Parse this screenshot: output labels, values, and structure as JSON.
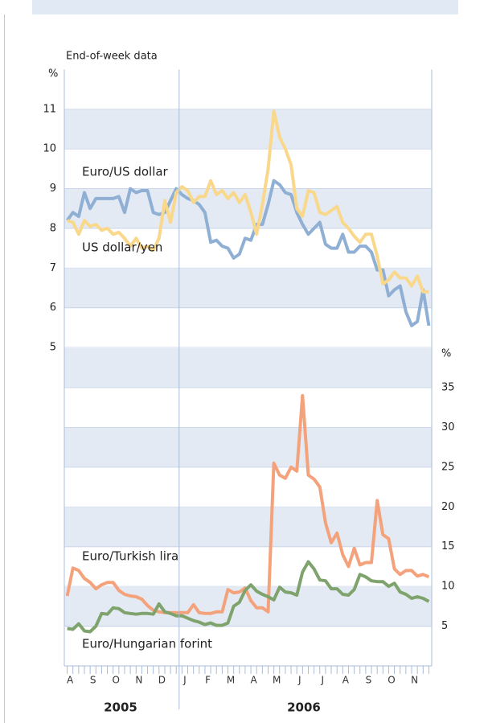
{
  "subtitle": "End-of-week data",
  "year_labels": [
    "2005",
    "2006"
  ],
  "chart_data": [
    {
      "type": "line",
      "y_unit": "%",
      "ylim": [
        5,
        12
      ],
      "yticks": [
        5,
        6,
        7,
        8,
        9,
        10,
        11
      ],
      "series": [
        {
          "name": "Euro/US dollar",
          "color": "#8fb0d4",
          "values": [
            8.2,
            8.4,
            8.3,
            8.9,
            8.5,
            8.75,
            8.75,
            8.75,
            8.75,
            8.8,
            8.4,
            9.0,
            8.9,
            8.95,
            8.95,
            8.4,
            8.35,
            8.4,
            8.7,
            9.0,
            8.85,
            8.75,
            8.7,
            8.6,
            8.4,
            7.65,
            7.7,
            7.55,
            7.5,
            7.25,
            7.35,
            7.75,
            7.7,
            8.1,
            8.1,
            8.6,
            9.2,
            9.1,
            8.9,
            8.85,
            8.4,
            8.1,
            7.85,
            8.0,
            8.15,
            7.6,
            7.5,
            7.5,
            7.85,
            7.4,
            7.4,
            7.55,
            7.55,
            7.4,
            6.95,
            6.95,
            6.3,
            6.45,
            6.55,
            5.9,
            5.55,
            5.65,
            6.45,
            5.55
          ]
        },
        {
          "name": "US dollar/yen",
          "color": "#f9d88c",
          "values": [
            8.2,
            8.15,
            7.85,
            8.2,
            8.05,
            8.1,
            7.95,
            8.0,
            7.85,
            7.9,
            7.75,
            7.55,
            7.75,
            7.5,
            7.55,
            7.45,
            7.75,
            8.7,
            8.15,
            8.9,
            9.05,
            8.95,
            8.65,
            8.8,
            8.8,
            9.2,
            8.85,
            8.95,
            8.75,
            8.9,
            8.65,
            8.85,
            8.4,
            7.85,
            8.6,
            9.5,
            10.95,
            10.3,
            10.0,
            9.6,
            8.5,
            8.3,
            8.95,
            8.9,
            8.4,
            8.35,
            8.45,
            8.55,
            8.15,
            8.0,
            7.8,
            7.65,
            7.85,
            7.85,
            7.3,
            6.6,
            6.7,
            6.9,
            6.75,
            6.75,
            6.55,
            6.8,
            6.4,
            6.4
          ]
        }
      ]
    },
    {
      "type": "line",
      "y_unit": "%",
      "ylim": [
        0,
        35
      ],
      "yticks": [
        5,
        10,
        15,
        20,
        25,
        30,
        35
      ],
      "categories": [
        null,
        "A",
        null,
        null,
        null,
        "S",
        null,
        null,
        null,
        "O",
        null,
        null,
        null,
        "N",
        null,
        null,
        null,
        "D",
        null,
        null,
        null,
        "J",
        null,
        null,
        null,
        "F",
        null,
        null,
        null,
        "M",
        null,
        null,
        null,
        "A",
        null,
        null,
        null,
        "M",
        null,
        null,
        null,
        "J",
        null,
        null,
        null,
        "J",
        null,
        null,
        null,
        "A",
        null,
        null,
        null,
        "S",
        null,
        null,
        null,
        "O",
        null,
        null,
        null,
        "N",
        null,
        null
      ],
      "series": [
        {
          "name": "Euro/Turkish lira",
          "color": "#f4a27c",
          "values": [
            8.8,
            12.3,
            12.0,
            11.0,
            10.5,
            9.7,
            10.2,
            10.5,
            10.5,
            9.5,
            9.0,
            8.8,
            8.7,
            8.4,
            7.6,
            7.0,
            6.8,
            6.7,
            6.7,
            6.7,
            6.7,
            6.7,
            7.7,
            6.7,
            6.6,
            6.6,
            6.8,
            6.8,
            9.6,
            9.2,
            9.3,
            9.8,
            8.2,
            7.3,
            7.3,
            6.8,
            25.5,
            24.0,
            23.6,
            25.0,
            24.5,
            34.0,
            24.0,
            23.5,
            22.5,
            18.0,
            15.5,
            16.7,
            14.0,
            12.5,
            14.8,
            12.7,
            13.0,
            13.0,
            20.8,
            16.5,
            16.0,
            12.2,
            11.5,
            12.0,
            12.0,
            11.3,
            11.5,
            11.2
          ]
        },
        {
          "name": "Euro/Hungarian forint",
          "color": "#7fa36c",
          "values": [
            4.7,
            4.6,
            5.3,
            4.4,
            4.3,
            5.0,
            6.6,
            6.5,
            7.3,
            7.2,
            6.7,
            6.6,
            6.5,
            6.6,
            6.6,
            6.5,
            7.8,
            6.8,
            6.6,
            6.3,
            6.3,
            6.0,
            5.7,
            5.5,
            5.2,
            5.4,
            5.1,
            5.1,
            5.4,
            7.5,
            8.0,
            9.5,
            10.2,
            9.4,
            9.0,
            8.7,
            8.3,
            9.9,
            9.3,
            9.2,
            8.9,
            11.8,
            13.1,
            12.2,
            10.8,
            10.7,
            9.7,
            9.7,
            9.0,
            8.9,
            9.6,
            11.5,
            11.2,
            10.7,
            10.6,
            10.6,
            10.0,
            10.4,
            9.3,
            9.0,
            8.5,
            8.7,
            8.5,
            8.1
          ]
        }
      ]
    }
  ]
}
